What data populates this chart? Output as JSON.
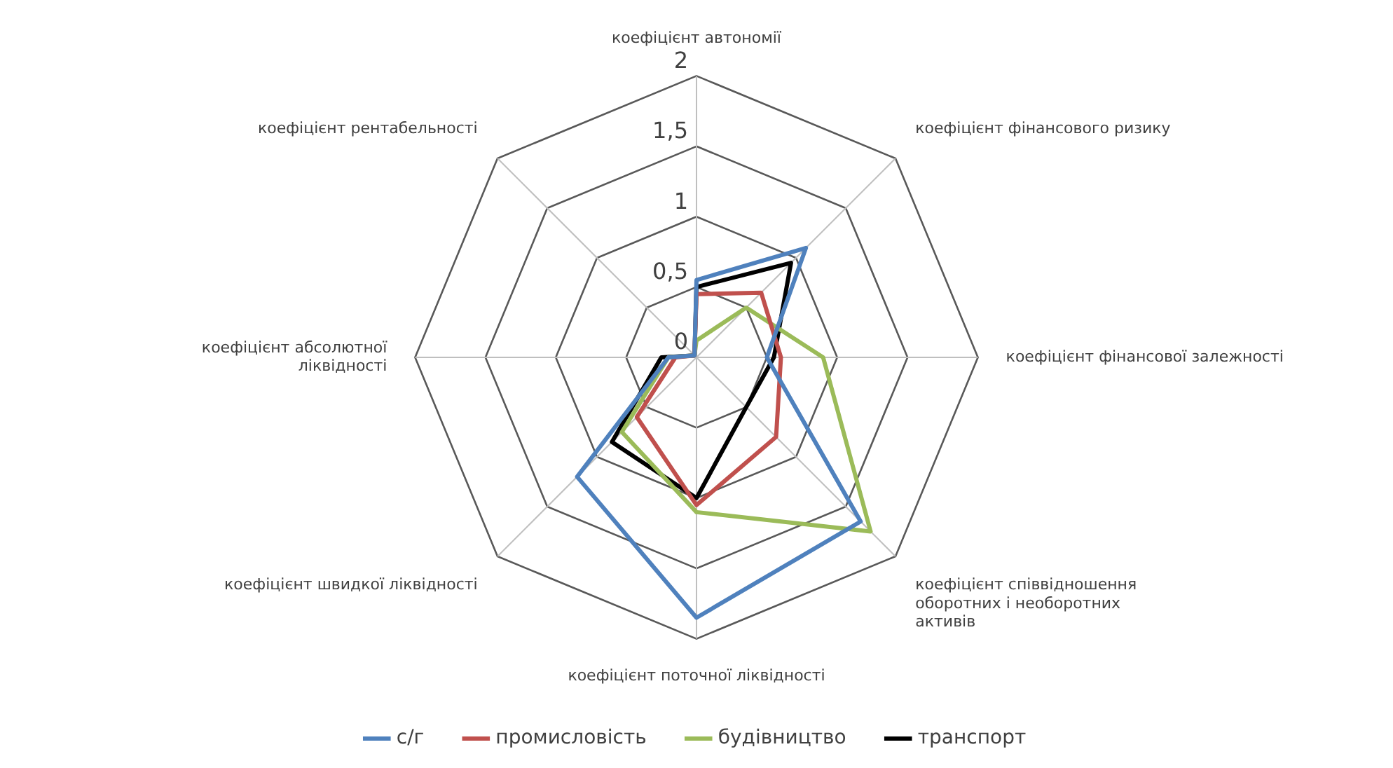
{
  "chart_data": {
    "type": "radar",
    "categories": [
      "коефіцієнт автономії",
      "коефіцієнт фінансового ризику",
      "коефіцієнт фінансової залежності",
      "коефіцієнт співвідношення оборотних і необоротних активів",
      "коефіцієнт поточної ліквідності",
      "коефіцієнт швидкої ліквідності",
      "коефіцієнт абсолютної ліквідності",
      "коефіцієнт рентабельності"
    ],
    "series": [
      {
        "name": "с/г",
        "color": "#4f81bd",
        "values": [
          0.55,
          1.1,
          0.5,
          1.65,
          1.85,
          1.2,
          0.2,
          0.02
        ]
      },
      {
        "name": "промисловість",
        "color": "#c0504d",
        "values": [
          0.45,
          0.65,
          0.6,
          0.8,
          1.05,
          0.6,
          0.15,
          0.02
        ]
      },
      {
        "name": "будівництво",
        "color": "#9bbb59",
        "values": [
          0.12,
          0.5,
          0.9,
          1.75,
          1.1,
          0.75,
          0.2,
          0.02
        ]
      },
      {
        "name": "транспорт",
        "color": "#000000",
        "values": [
          0.5,
          0.95,
          0.55,
          0.5,
          1.0,
          0.85,
          0.25,
          0.02
        ]
      }
    ],
    "ylim": [
      0,
      2
    ],
    "yticks": [
      {
        "value": 0,
        "label": "0"
      },
      {
        "value": 0.5,
        "label": "0,5"
      },
      {
        "value": 1,
        "label": "1"
      },
      {
        "value": 1.5,
        "label": "1,5"
      },
      {
        "value": 2,
        "label": "2"
      }
    ],
    "grid": true,
    "legend": "bottom",
    "marker": "none",
    "line_style": "solid"
  }
}
